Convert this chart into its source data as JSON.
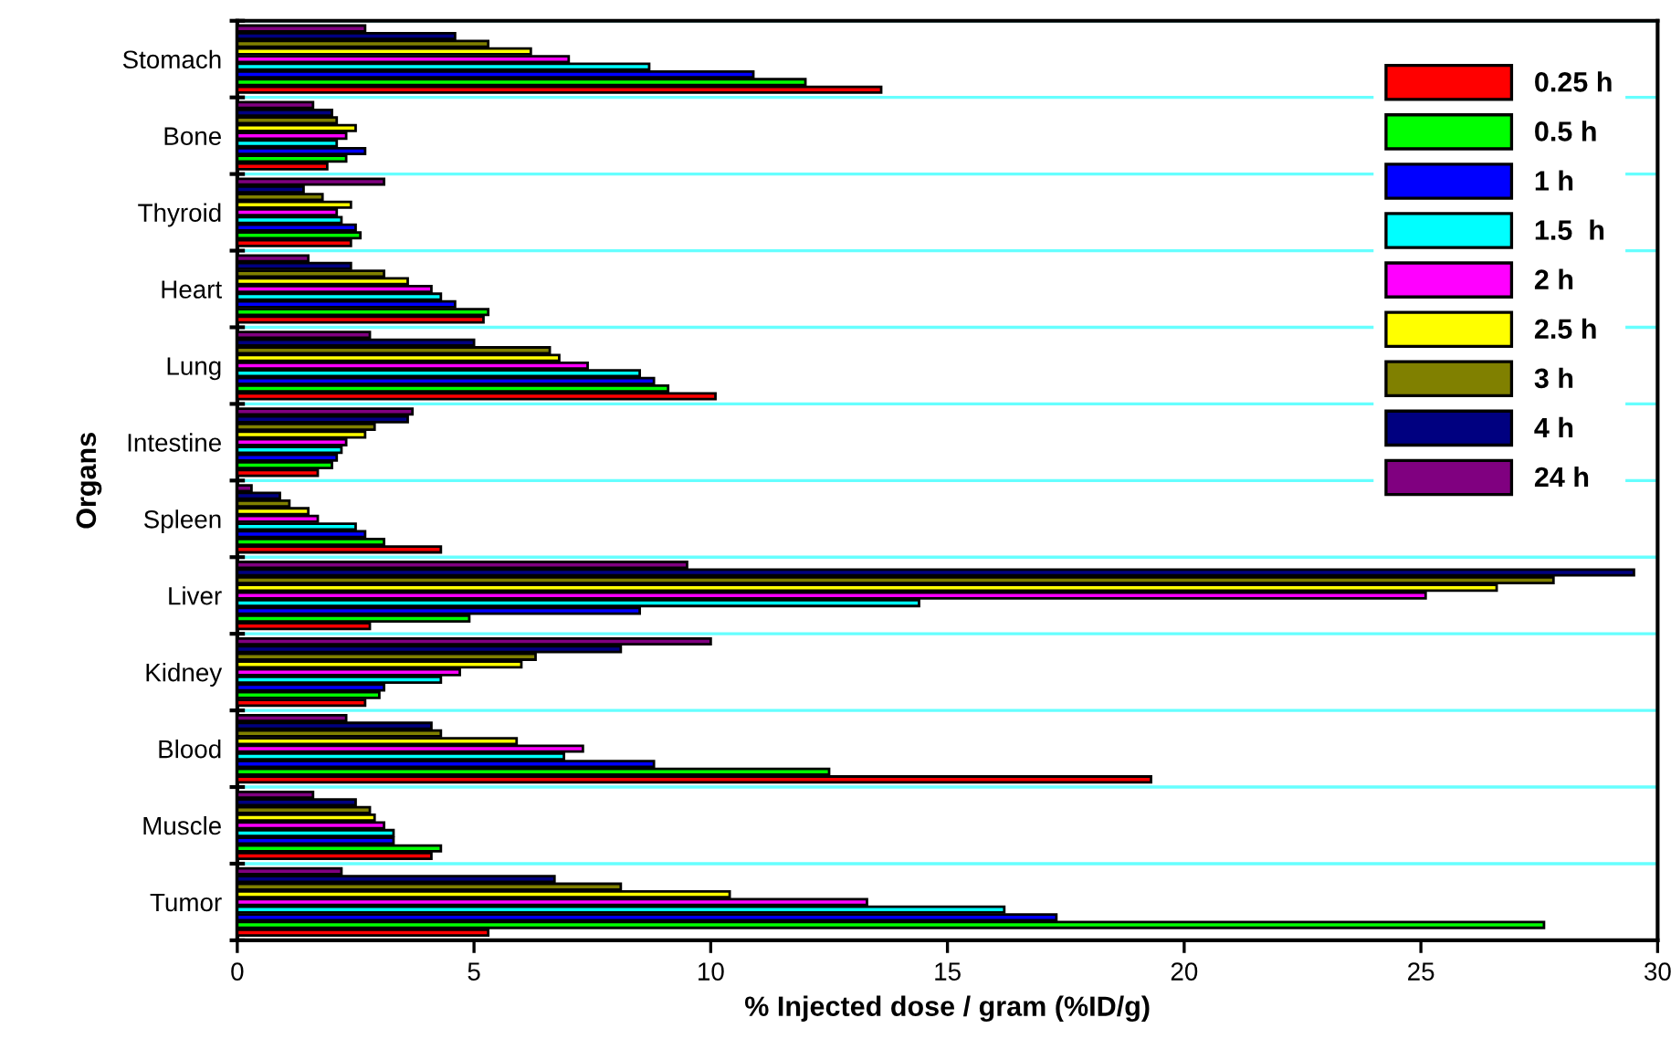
{
  "chart_data": {
    "type": "bar",
    "orientation": "horizontal",
    "xlabel": "% Injected dose / gram (%ID/g)",
    "ylabel": "Organs",
    "categories": [
      "Stomach",
      "Bone",
      "Thyroid",
      "Heart",
      "Lung",
      "Intestine",
      "Spleen",
      "Liver",
      "Kidney",
      "Blood",
      "Muscle",
      "Tumor"
    ],
    "series": [
      {
        "name": "0.25 h",
        "color": "#ff0000",
        "values": [
          13.6,
          1.9,
          2.4,
          5.2,
          10.1,
          1.7,
          4.3,
          2.8,
          2.7,
          19.3,
          4.1,
          5.3
        ]
      },
      {
        "name": "0.5 h",
        "color": "#00ff00",
        "values": [
          12.0,
          2.3,
          2.6,
          5.3,
          9.1,
          2.0,
          3.1,
          4.9,
          3.0,
          12.5,
          4.3,
          27.6
        ]
      },
      {
        "name": "1 h",
        "color": "#0000ff",
        "values": [
          10.9,
          2.7,
          2.5,
          4.6,
          8.8,
          2.1,
          2.7,
          8.5,
          3.1,
          8.8,
          3.3,
          17.3
        ]
      },
      {
        "name": "1.5  h",
        "color": "#00ffff",
        "values": [
          8.7,
          2.1,
          2.2,
          4.3,
          8.5,
          2.2,
          2.5,
          14.4,
          4.3,
          6.9,
          3.3,
          16.2
        ]
      },
      {
        "name": "2 h",
        "color": "#ff00ff",
        "values": [
          7.0,
          2.3,
          2.1,
          4.1,
          7.4,
          2.3,
          1.7,
          25.1,
          4.7,
          7.3,
          3.1,
          13.3
        ]
      },
      {
        "name": "2.5 h",
        "color": "#ffff00",
        "values": [
          6.2,
          2.5,
          2.4,
          3.6,
          6.8,
          2.7,
          1.5,
          26.6,
          6.0,
          5.9,
          2.9,
          10.4
        ]
      },
      {
        "name": "3 h",
        "color": "#808000",
        "values": [
          5.3,
          2.1,
          1.8,
          3.1,
          6.6,
          2.9,
          1.1,
          27.8,
          6.3,
          4.3,
          2.8,
          8.1
        ]
      },
      {
        "name": "4 h",
        "color": "#000080",
        "values": [
          4.6,
          2.0,
          1.4,
          2.4,
          5.0,
          3.6,
          0.9,
          29.5,
          8.1,
          4.1,
          2.5,
          6.7
        ]
      },
      {
        "name": "24 h",
        "color": "#800080",
        "values": [
          2.7,
          1.6,
          3.1,
          1.5,
          2.8,
          3.7,
          0.3,
          9.5,
          10.0,
          2.3,
          1.6,
          2.2
        ]
      }
    ],
    "xlim": [
      0,
      30
    ],
    "xticks": [
      0,
      5,
      10,
      15,
      20,
      25,
      30
    ],
    "grid": "y",
    "legend": "top right"
  }
}
